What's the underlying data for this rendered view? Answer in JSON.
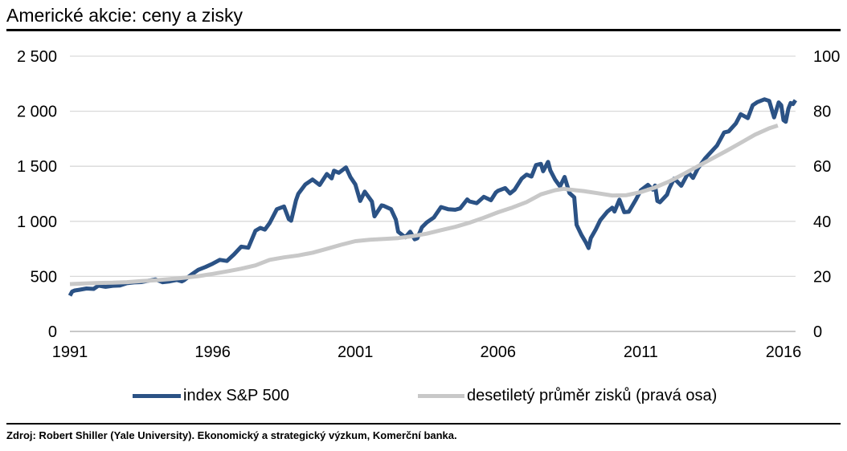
{
  "source": "Zdroj: Robert Shiller (Yale University). Ekonomický a strategický výzkum, Komerční banka.",
  "chart_data": {
    "type": "line",
    "title": "Americké akcie: ceny a zisky",
    "grid": true,
    "legend": "bottom",
    "x_axis": {
      "ticks": [
        1991,
        1996,
        2001,
        2006,
        2011,
        2016
      ],
      "tick_labels": [
        "1991",
        "1996",
        "2001",
        "2006",
        "2011",
        "2016"
      ],
      "lim": [
        1991,
        2016.42
      ]
    },
    "y_left": {
      "ticks": [
        0,
        500,
        1000,
        1500,
        2000,
        2500
      ],
      "tick_labels": [
        "0",
        "500",
        "1 000",
        "1 500",
        "2 000",
        "2 500"
      ],
      "lim": [
        0,
        2500
      ]
    },
    "y_right": {
      "ticks": [
        0,
        20,
        40,
        60,
        80,
        100
      ],
      "tick_labels": [
        "0",
        "20",
        "40",
        "60",
        "80",
        "100"
      ],
      "lim": [
        0,
        100
      ]
    },
    "series": [
      {
        "name": "index S&P 500",
        "axis": "left",
        "color": "#2b5285",
        "points": [
          [
            1991.0,
            325
          ],
          [
            1991.08,
            362
          ],
          [
            1991.17,
            372
          ],
          [
            1991.33,
            378
          ],
          [
            1991.58,
            390
          ],
          [
            1991.83,
            386
          ],
          [
            1992.0,
            416
          ],
          [
            1992.25,
            405
          ],
          [
            1992.5,
            415
          ],
          [
            1992.75,
            418
          ],
          [
            1993.0,
            438
          ],
          [
            1993.25,
            445
          ],
          [
            1993.5,
            448
          ],
          [
            1993.75,
            461
          ],
          [
            1994.0,
            472
          ],
          [
            1994.25,
            447
          ],
          [
            1994.5,
            455
          ],
          [
            1994.75,
            468
          ],
          [
            1994.92,
            455
          ],
          [
            1995.0,
            466
          ],
          [
            1995.25,
            515
          ],
          [
            1995.5,
            560
          ],
          [
            1995.75,
            585
          ],
          [
            1996.0,
            615
          ],
          [
            1996.25,
            650
          ],
          [
            1996.5,
            640
          ],
          [
            1996.75,
            700
          ],
          [
            1997.0,
            770
          ],
          [
            1997.25,
            760
          ],
          [
            1997.5,
            915
          ],
          [
            1997.67,
            940
          ],
          [
            1997.83,
            925
          ],
          [
            1998.0,
            985
          ],
          [
            1998.25,
            1110
          ],
          [
            1998.5,
            1135
          ],
          [
            1998.67,
            1020
          ],
          [
            1998.75,
            1005
          ],
          [
            1998.92,
            1190
          ],
          [
            1999.0,
            1250
          ],
          [
            1999.25,
            1335
          ],
          [
            1999.5,
            1380
          ],
          [
            1999.75,
            1330
          ],
          [
            2000.0,
            1430
          ],
          [
            2000.17,
            1390
          ],
          [
            2000.25,
            1460
          ],
          [
            2000.42,
            1440
          ],
          [
            2000.67,
            1490
          ],
          [
            2000.83,
            1400
          ],
          [
            2001.0,
            1335
          ],
          [
            2001.17,
            1185
          ],
          [
            2001.33,
            1270
          ],
          [
            2001.58,
            1180
          ],
          [
            2001.67,
            1045
          ],
          [
            2001.92,
            1145
          ],
          [
            2002.0,
            1140
          ],
          [
            2002.25,
            1110
          ],
          [
            2002.42,
            1015
          ],
          [
            2002.5,
            905
          ],
          [
            2002.75,
            855
          ],
          [
            2002.92,
            905
          ],
          [
            2003.08,
            837
          ],
          [
            2003.17,
            846
          ],
          [
            2003.33,
            945
          ],
          [
            2003.5,
            990
          ],
          [
            2003.75,
            1035
          ],
          [
            2004.0,
            1130
          ],
          [
            2004.25,
            1110
          ],
          [
            2004.5,
            1105
          ],
          [
            2004.67,
            1117
          ],
          [
            2004.92,
            1199
          ],
          [
            2005.0,
            1181
          ],
          [
            2005.25,
            1165
          ],
          [
            2005.5,
            1222
          ],
          [
            2005.75,
            1192
          ],
          [
            2005.92,
            1262
          ],
          [
            2006.0,
            1278
          ],
          [
            2006.25,
            1302
          ],
          [
            2006.42,
            1253
          ],
          [
            2006.58,
            1287
          ],
          [
            2006.83,
            1389
          ],
          [
            2007.0,
            1424
          ],
          [
            2007.17,
            1407
          ],
          [
            2007.33,
            1511
          ],
          [
            2007.5,
            1522
          ],
          [
            2007.58,
            1455
          ],
          [
            2007.75,
            1540
          ],
          [
            2007.83,
            1463
          ],
          [
            2008.0,
            1378
          ],
          [
            2008.17,
            1317
          ],
          [
            2008.33,
            1403
          ],
          [
            2008.5,
            1257
          ],
          [
            2008.67,
            1217
          ],
          [
            2008.75,
            968
          ],
          [
            2008.92,
            877
          ],
          [
            2009.08,
            806
          ],
          [
            2009.17,
            757
          ],
          [
            2009.25,
            848
          ],
          [
            2009.42,
            926
          ],
          [
            2009.58,
            1010
          ],
          [
            2009.83,
            1088
          ],
          [
            2010.0,
            1124
          ],
          [
            2010.08,
            1089
          ],
          [
            2010.25,
            1197
          ],
          [
            2010.42,
            1083
          ],
          [
            2010.58,
            1087
          ],
          [
            2010.83,
            1198
          ],
          [
            2011.0,
            1282
          ],
          [
            2011.25,
            1331
          ],
          [
            2011.42,
            1287
          ],
          [
            2011.5,
            1325
          ],
          [
            2011.58,
            1185
          ],
          [
            2011.67,
            1173
          ],
          [
            2011.92,
            1243
          ],
          [
            2012.0,
            1300
          ],
          [
            2012.17,
            1389
          ],
          [
            2012.42,
            1323
          ],
          [
            2012.67,
            1443
          ],
          [
            2012.83,
            1394
          ],
          [
            2013.0,
            1480
          ],
          [
            2013.25,
            1570
          ],
          [
            2013.42,
            1619
          ],
          [
            2013.67,
            1688
          ],
          [
            2013.92,
            1807
          ],
          [
            2014.08,
            1817
          ],
          [
            2014.33,
            1889
          ],
          [
            2014.5,
            1973
          ],
          [
            2014.75,
            1937
          ],
          [
            2014.92,
            2054
          ],
          [
            2015.08,
            2082
          ],
          [
            2015.33,
            2108
          ],
          [
            2015.5,
            2094
          ],
          [
            2015.67,
            1944
          ],
          [
            2015.83,
            2080
          ],
          [
            2015.92,
            2054
          ],
          [
            2016.0,
            1919
          ],
          [
            2016.08,
            1904
          ],
          [
            2016.17,
            2022
          ],
          [
            2016.25,
            2075
          ],
          [
            2016.33,
            2065
          ],
          [
            2016.42,
            2100
          ]
        ]
      },
      {
        "name": "desetiletý průměr zisků (pravá osa)",
        "axis": "right",
        "color": "#c8c8c8",
        "points": [
          [
            1991.0,
            17.2
          ],
          [
            1991.5,
            17.4
          ],
          [
            1992.0,
            17.6
          ],
          [
            1992.5,
            17.7
          ],
          [
            1993.0,
            17.9
          ],
          [
            1993.5,
            18.3
          ],
          [
            1994.0,
            18.6
          ],
          [
            1994.5,
            19.0
          ],
          [
            1995.0,
            19.5
          ],
          [
            1995.5,
            20.1
          ],
          [
            1996.0,
            20.9
          ],
          [
            1996.5,
            21.8
          ],
          [
            1997.0,
            22.8
          ],
          [
            1997.5,
            24.0
          ],
          [
            1998.0,
            26.0
          ],
          [
            1998.5,
            26.9
          ],
          [
            1999.0,
            27.6
          ],
          [
            1999.5,
            28.6
          ],
          [
            2000.0,
            30.0
          ],
          [
            2000.5,
            31.5
          ],
          [
            2001.0,
            32.8
          ],
          [
            2001.5,
            33.3
          ],
          [
            2002.0,
            33.6
          ],
          [
            2002.5,
            33.9
          ],
          [
            2003.0,
            34.6
          ],
          [
            2003.5,
            35.5
          ],
          [
            2004.0,
            36.8
          ],
          [
            2004.5,
            38.0
          ],
          [
            2005.0,
            39.5
          ],
          [
            2005.5,
            41.3
          ],
          [
            2006.0,
            43.3
          ],
          [
            2006.5,
            45.0
          ],
          [
            2007.0,
            47.0
          ],
          [
            2007.5,
            49.8
          ],
          [
            2008.0,
            51.3
          ],
          [
            2008.3,
            51.8
          ],
          [
            2008.7,
            51.3
          ],
          [
            2009.0,
            51.0
          ],
          [
            2009.5,
            50.2
          ],
          [
            2010.0,
            49.4
          ],
          [
            2010.5,
            49.5
          ],
          [
            2011.0,
            50.6
          ],
          [
            2011.5,
            52.3
          ],
          [
            2012.0,
            54.5
          ],
          [
            2012.5,
            57.2
          ],
          [
            2013.0,
            60.0
          ],
          [
            2013.5,
            62.8
          ],
          [
            2014.0,
            65.6
          ],
          [
            2014.5,
            68.5
          ],
          [
            2015.0,
            71.5
          ],
          [
            2015.5,
            73.8
          ],
          [
            2015.8,
            74.8
          ]
        ]
      }
    ]
  }
}
